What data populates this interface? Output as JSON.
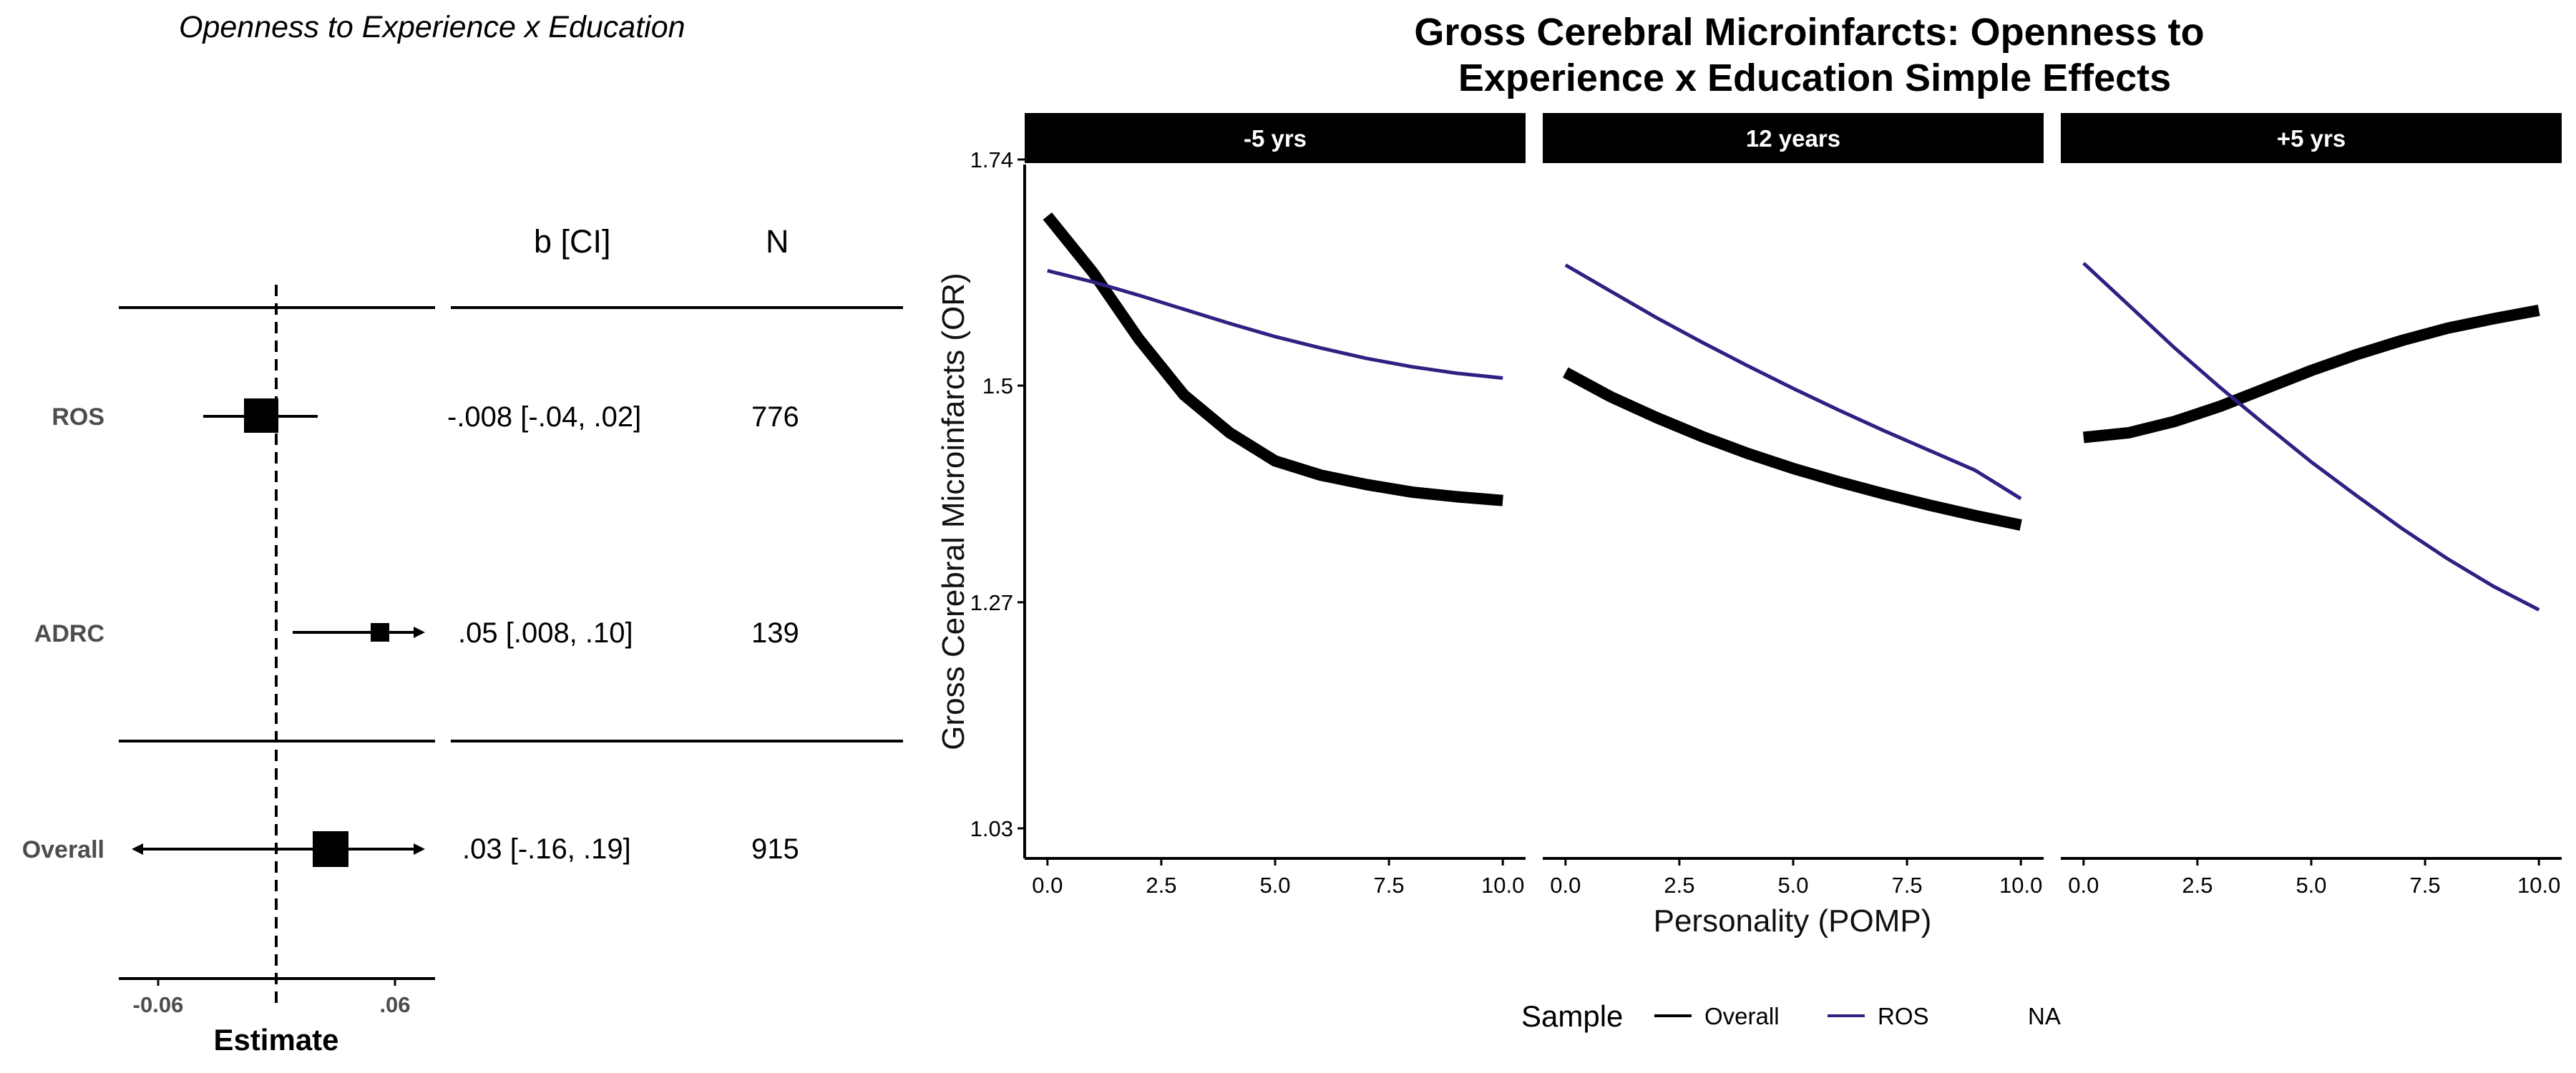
{
  "forest": {
    "title": "Openness to Experience x Education",
    "col_estimate": "b [CI]",
    "col_n": "N",
    "rows": [
      {
        "label": "ROS",
        "estimate": -0.008,
        "ci": [
          -0.04,
          0.02
        ],
        "text": "-.008 [-.04, .02]",
        "n": "776"
      },
      {
        "label": "ADRC",
        "estimate": 0.05,
        "ci": [
          0.008,
          0.1
        ],
        "text": ".05 [.008, .10]",
        "n": "139"
      },
      {
        "label": "Overall",
        "estimate": 0.03,
        "ci": [
          -0.16,
          0.19
        ],
        "text": ".03 [-.16, .19]",
        "n": "915"
      }
    ],
    "x_ticks": [
      "-0.06",
      ".06"
    ],
    "x_label": "Estimate",
    "reference_line": 0
  },
  "chart_data": {
    "type": "line",
    "title": "Gross Cerebral Microinfarcts: Openness to Experience x Education Simple Effects",
    "xlabel": "Personality (POMP)",
    "ylabel": "Gross Cerebral Microinfarcts (OR)",
    "x_ticks": [
      "0.0",
      "2.5",
      "5.0",
      "7.5",
      "10.0"
    ],
    "y_ticks": [
      "1.03",
      "1.27",
      "1.5",
      "1.74"
    ],
    "xlim": [
      -0.5,
      10.5
    ],
    "ylim": [
      1.03,
      1.74
    ],
    "legend_title": "Sample",
    "legend_position": "bottom",
    "legend_items": [
      "Overall",
      "ROS",
      "NA"
    ],
    "colors": {
      "Overall": "#000000",
      "ROS": "#2e2182"
    },
    "panels": [
      {
        "label": "-5 yrs",
        "series": [
          {
            "name": "Overall",
            "x": [
              0,
              1,
              2,
              3,
              4,
              5,
              6,
              7,
              8,
              9,
              10
            ],
            "y": [
              1.68,
              1.62,
              1.55,
              1.49,
              1.45,
              1.42,
              1.405,
              1.395,
              1.387,
              1.382,
              1.378
            ]
          },
          {
            "name": "ROS",
            "x": [
              0,
              1,
              2,
              3,
              4,
              5,
              6,
              7,
              8,
              9,
              10
            ],
            "y": [
              1.622,
              1.61,
              1.596,
              1.581,
              1.566,
              1.552,
              1.54,
              1.529,
              1.52,
              1.513,
              1.508
            ]
          }
        ]
      },
      {
        "label": "12 years",
        "series": [
          {
            "name": "Overall",
            "x": [
              0,
              1,
              2,
              3,
              4,
              5,
              6,
              7,
              8,
              9,
              10
            ],
            "y": [
              1.514,
              1.488,
              1.466,
              1.446,
              1.428,
              1.412,
              1.398,
              1.385,
              1.373,
              1.362,
              1.352
            ]
          },
          {
            "name": "ROS",
            "x": [
              0,
              1,
              2,
              3,
              4,
              5,
              6,
              7,
              8,
              9,
              10
            ],
            "y": [
              1.628,
              1.6,
              1.572,
              1.546,
              1.521,
              1.497,
              1.474,
              1.452,
              1.431,
              1.41,
              1.38
            ]
          }
        ]
      },
      {
        "label": "+5 yrs",
        "series": [
          {
            "name": "Overall",
            "x": [
              0,
              1,
              2,
              3,
              4,
              5,
              6,
              7,
              8,
              9,
              10
            ],
            "y": [
              1.445,
              1.45,
              1.462,
              1.478,
              1.497,
              1.516,
              1.533,
              1.548,
              1.561,
              1.571,
              1.58
            ]
          },
          {
            "name": "ROS",
            "x": [
              0,
              1,
              2,
              3,
              4,
              5,
              6,
              7,
              8,
              9,
              10
            ],
            "y": [
              1.63,
              1.585,
              1.54,
              1.498,
              1.458,
              1.419,
              1.383,
              1.348,
              1.316,
              1.287,
              1.262
            ]
          }
        ]
      }
    ]
  }
}
